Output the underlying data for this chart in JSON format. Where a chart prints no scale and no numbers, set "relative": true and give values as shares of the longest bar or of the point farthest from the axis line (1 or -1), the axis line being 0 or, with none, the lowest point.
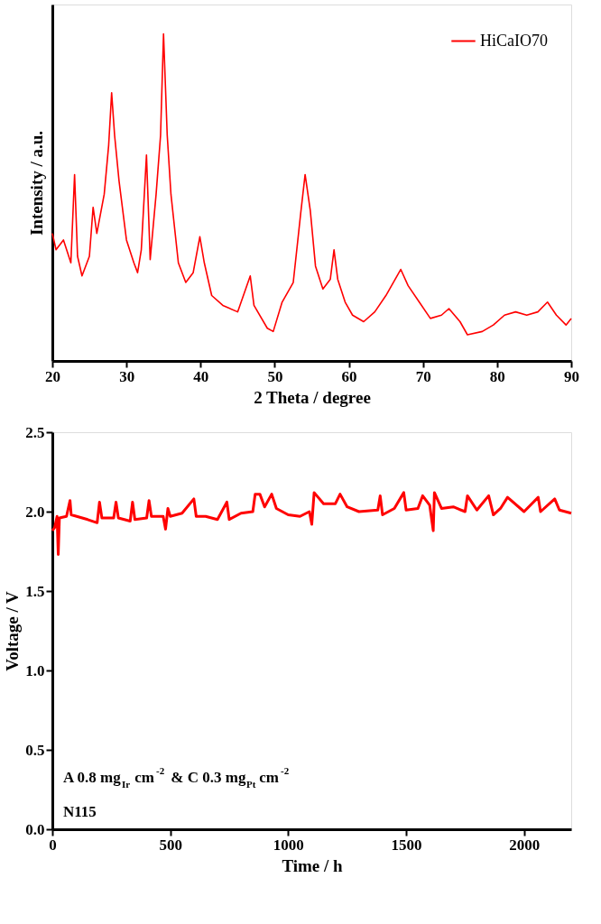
{
  "chart_data": [
    {
      "type": "line",
      "xlabel": "2 Theta / degree",
      "ylabel": "Intensity / a.u.",
      "relative": true,
      "xlim": [
        20,
        90
      ],
      "xticks": [
        20,
        30,
        40,
        50,
        60,
        70,
        80,
        90
      ],
      "grid": false,
      "legend": "top right",
      "tick_labels": "x",
      "marker": "none",
      "line_style": "solid",
      "series": [
        {
          "name": "HiCaIO70",
          "color": "#ff0000",
          "x": [
            20.0,
            20.5,
            21.5,
            22.5,
            23.0,
            23.4,
            24.0,
            25.0,
            25.5,
            26.0,
            27.0,
            27.6,
            28.0,
            28.4,
            29.0,
            30.0,
            31.0,
            31.5,
            32.0,
            32.7,
            33.2,
            34.0,
            34.6,
            35.0,
            35.5,
            36.0,
            37.0,
            38.0,
            39.0,
            39.9,
            40.5,
            41.5,
            43.0,
            45.0,
            46.7,
            47.2,
            49.0,
            49.8,
            51.0,
            52.5,
            53.5,
            54.1,
            54.8,
            55.5,
            56.5,
            57.5,
            58.0,
            58.5,
            59.5,
            60.5,
            62.0,
            63.5,
            65.0,
            66.0,
            67.0,
            68.0,
            69.5,
            71.0,
            72.5,
            73.5,
            75.0,
            76.0,
            78.0,
            79.5,
            81.0,
            82.5,
            84.0,
            85.5,
            86.8,
            88.0,
            89.3,
            90.0
          ],
          "values": [
            0.39,
            0.34,
            0.37,
            0.3,
            0.57,
            0.32,
            0.26,
            0.32,
            0.47,
            0.39,
            0.51,
            0.66,
            0.82,
            0.69,
            0.55,
            0.37,
            0.3,
            0.27,
            0.34,
            0.63,
            0.31,
            0.51,
            0.69,
            1.0,
            0.69,
            0.51,
            0.3,
            0.24,
            0.27,
            0.38,
            0.3,
            0.2,
            0.17,
            0.15,
            0.26,
            0.17,
            0.1,
            0.09,
            0.18,
            0.24,
            0.45,
            0.57,
            0.46,
            0.29,
            0.22,
            0.25,
            0.34,
            0.25,
            0.18,
            0.14,
            0.12,
            0.15,
            0.2,
            0.24,
            0.28,
            0.23,
            0.18,
            0.13,
            0.14,
            0.16,
            0.12,
            0.08,
            0.09,
            0.11,
            0.14,
            0.15,
            0.14,
            0.15,
            0.18,
            0.14,
            0.11,
            0.13
          ]
        }
      ]
    },
    {
      "type": "line",
      "xlabel": "Time / h",
      "ylabel": "Voltage / V",
      "xlim": [
        0,
        2200
      ],
      "xticks": [
        0,
        500,
        1000,
        1500,
        2000
      ],
      "ylim": [
        0,
        2.5
      ],
      "yticks": [
        {
          "value": 0,
          "label": "0.0"
        },
        0.5,
        {
          "value": 1,
          "label": "1.0"
        },
        1.5,
        {
          "value": 2,
          "label": "2.0"
        },
        2.5
      ],
      "grid": false,
      "marker": "none",
      "line_style": "solid",
      "annotations": [
        "A 0.8 mg$_{Ir}$ cm$^{-2}$ & C 0.3 mg$_{Pt}$ cm$^{-2}$",
        "N115"
      ],
      "series": [
        {
          "color": "#ff0000",
          "x": [
            0,
            10,
            20,
            25,
            30,
            60,
            75,
            80,
            150,
            190,
            200,
            210,
            260,
            270,
            280,
            330,
            340,
            350,
            400,
            410,
            420,
            470,
            480,
            490,
            500,
            550,
            600,
            610,
            650,
            700,
            740,
            750,
            800,
            850,
            860,
            880,
            900,
            930,
            950,
            1000,
            1050,
            1090,
            1100,
            1110,
            1150,
            1200,
            1220,
            1250,
            1300,
            1380,
            1390,
            1400,
            1450,
            1490,
            1500,
            1550,
            1570,
            1600,
            1615,
            1620,
            1650,
            1700,
            1750,
            1760,
            1800,
            1850,
            1870,
            1900,
            1930,
            2000,
            2060,
            2070,
            2130,
            2150,
            2200
          ],
          "values": [
            1.88,
            1.9,
            1.97,
            1.73,
            1.96,
            1.97,
            2.07,
            1.98,
            1.95,
            1.93,
            2.06,
            1.96,
            1.96,
            2.06,
            1.96,
            1.94,
            2.06,
            1.95,
            1.96,
            2.07,
            1.97,
            1.97,
            1.89,
            2.02,
            1.97,
            1.99,
            2.08,
            1.97,
            1.97,
            1.95,
            2.06,
            1.95,
            1.99,
            2.0,
            2.11,
            2.11,
            2.03,
            2.11,
            2.02,
            1.98,
            1.97,
            2.0,
            1.92,
            2.12,
            2.05,
            2.05,
            2.11,
            2.03,
            2.0,
            2.01,
            2.1,
            1.98,
            2.02,
            2.12,
            2.01,
            2.02,
            2.1,
            2.04,
            1.88,
            2.12,
            2.02,
            2.03,
            2.0,
            2.1,
            2.01,
            2.1,
            1.98,
            2.02,
            2.09,
            2.0,
            2.09,
            2.0,
            2.08,
            2.01,
            1.99
          ]
        }
      ]
    }
  ]
}
